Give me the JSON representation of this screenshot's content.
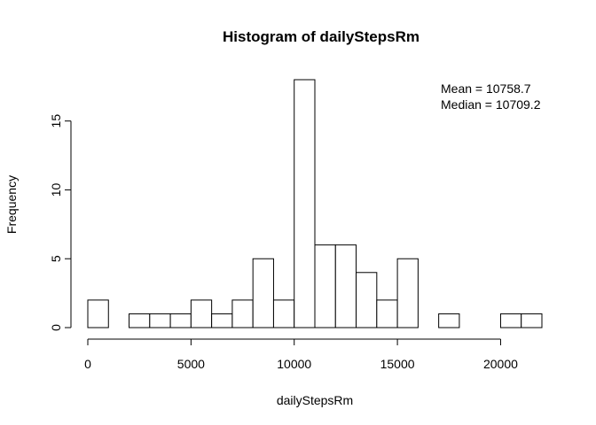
{
  "chart_data": {
    "type": "bar",
    "title": "Histogram of dailyStepsRm",
    "xlabel": "dailyStepsRm",
    "ylabel": "Frequency",
    "bin_width": 1000,
    "bins": [
      {
        "start": 0,
        "end": 1000,
        "count": 2
      },
      {
        "start": 1000,
        "end": 2000,
        "count": 0
      },
      {
        "start": 2000,
        "end": 3000,
        "count": 1
      },
      {
        "start": 3000,
        "end": 4000,
        "count": 1
      },
      {
        "start": 4000,
        "end": 5000,
        "count": 1
      },
      {
        "start": 5000,
        "end": 6000,
        "count": 2
      },
      {
        "start": 6000,
        "end": 7000,
        "count": 1
      },
      {
        "start": 7000,
        "end": 8000,
        "count": 2
      },
      {
        "start": 8000,
        "end": 9000,
        "count": 5
      },
      {
        "start": 9000,
        "end": 10000,
        "count": 2
      },
      {
        "start": 10000,
        "end": 11000,
        "count": 18
      },
      {
        "start": 11000,
        "end": 12000,
        "count": 6
      },
      {
        "start": 12000,
        "end": 13000,
        "count": 6
      },
      {
        "start": 13000,
        "end": 14000,
        "count": 4
      },
      {
        "start": 14000,
        "end": 15000,
        "count": 2
      },
      {
        "start": 15000,
        "end": 16000,
        "count": 5
      },
      {
        "start": 16000,
        "end": 17000,
        "count": 0
      },
      {
        "start": 17000,
        "end": 18000,
        "count": 1
      },
      {
        "start": 18000,
        "end": 19000,
        "count": 0
      },
      {
        "start": 19000,
        "end": 20000,
        "count": 0
      },
      {
        "start": 20000,
        "end": 21000,
        "count": 1
      },
      {
        "start": 21000,
        "end": 22000,
        "count": 1
      }
    ],
    "xlim": [
      0,
      22000
    ],
    "ylim": [
      0,
      18
    ],
    "x_ticks": [
      0,
      5000,
      10000,
      15000,
      20000
    ],
    "y_ticks": [
      0,
      5,
      10,
      15
    ],
    "annotations": [
      "Mean = 10758.7",
      "Median = 10709.2"
    ],
    "bar_fill": "#ffffff",
    "bar_stroke": "#000000",
    "grid": false,
    "legend": "none"
  }
}
